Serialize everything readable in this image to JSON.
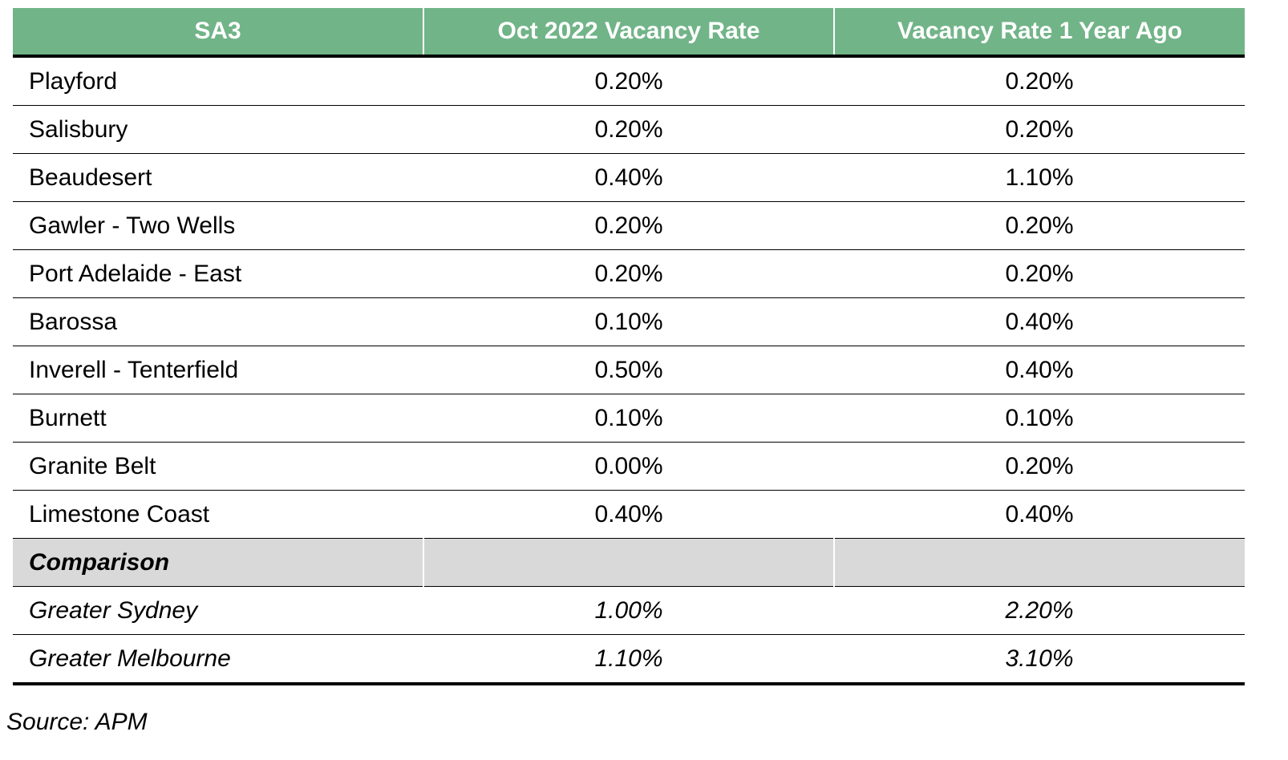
{
  "table": {
    "columns": [
      "SA3",
      "Oct 2022 Vacancy Rate",
      "Vacancy Rate 1 Year Ago"
    ],
    "rows": [
      [
        "Playford",
        "0.20%",
        "0.20%"
      ],
      [
        "Salisbury",
        "0.20%",
        "0.20%"
      ],
      [
        "Beaudesert",
        "0.40%",
        "1.10%"
      ],
      [
        "Gawler - Two Wells",
        "0.20%",
        "0.20%"
      ],
      [
        "Port Adelaide - East",
        "0.20%",
        "0.20%"
      ],
      [
        "Barossa",
        "0.10%",
        "0.40%"
      ],
      [
        "Inverell - Tenterfield",
        "0.50%",
        "0.40%"
      ],
      [
        "Burnett",
        "0.10%",
        "0.10%"
      ],
      [
        "Granite Belt",
        "0.00%",
        "0.20%"
      ],
      [
        "Limestone Coast",
        "0.40%",
        "0.40%"
      ]
    ],
    "section": "Comparison",
    "comparison_rows": [
      [
        "Greater Sydney",
        "1.00%",
        "2.20%"
      ],
      [
        "Greater Melbourne",
        "1.10%",
        "3.10%"
      ]
    ]
  },
  "source": "Source: APM"
}
